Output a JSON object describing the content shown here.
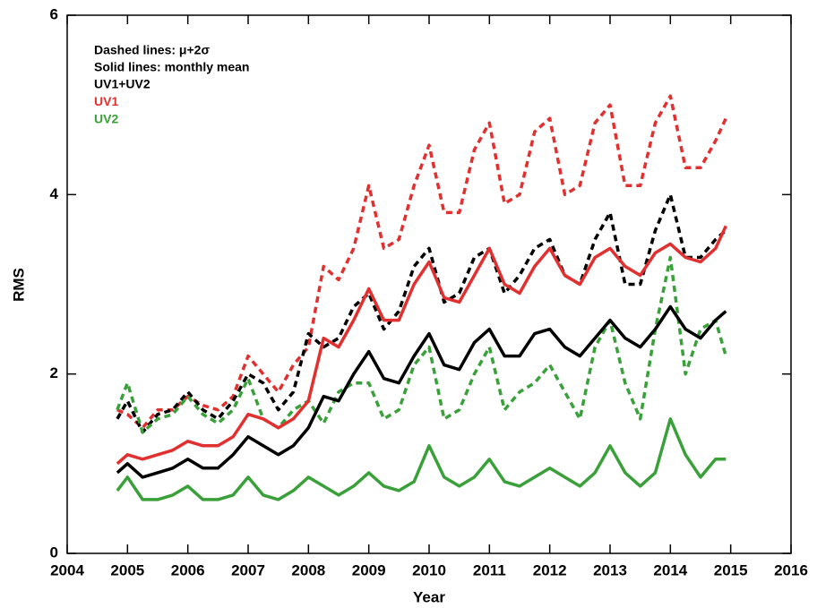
{
  "chart_data": {
    "type": "line",
    "x_label": "Year",
    "y_label": "RMS",
    "annotations": [
      "Dashed lines: μ+2σ",
      "Solid lines: monthly mean"
    ],
    "xlim": [
      2004,
      2016
    ],
    "xticks": [
      2004,
      2005,
      2006,
      2007,
      2008,
      2009,
      2010,
      2011,
      2012,
      2013,
      2014,
      2015,
      2016
    ],
    "ylim": [
      0,
      6
    ],
    "yticks": [
      0,
      2,
      4,
      6
    ],
    "x": [
      2004.83,
      2005,
      2005.25,
      2005.5,
      2005.75,
      2006,
      2006.25,
      2006.5,
      2006.75,
      2007,
      2007.25,
      2007.5,
      2007.75,
      2008,
      2008.25,
      2008.5,
      2008.75,
      2009,
      2009.25,
      2009.5,
      2009.75,
      2010,
      2010.25,
      2010.5,
      2010.75,
      2011,
      2011.25,
      2011.5,
      2011.75,
      2012,
      2012.25,
      2012.5,
      2012.75,
      2013,
      2013.25,
      2013.5,
      2013.75,
      2014,
      2014.25,
      2014.5,
      2014.75,
      2014.92
    ],
    "series": [
      {
        "color": "#e03030",
        "dashed": true,
        "values": [
          1.6,
          1.55,
          1.4,
          1.6,
          1.6,
          1.75,
          1.65,
          1.6,
          1.75,
          2.2,
          2.0,
          1.8,
          2.1,
          2.3,
          3.2,
          3.05,
          3.4,
          4.1,
          3.4,
          3.5,
          4.1,
          4.55,
          3.8,
          3.8,
          4.5,
          4.8,
          3.9,
          4.0,
          4.7,
          4.85,
          4.0,
          4.1,
          4.8,
          5.0,
          4.1,
          4.1,
          4.8,
          5.1,
          4.3,
          4.3,
          4.6,
          4.85
        ]
      },
      {
        "color": "#000000",
        "dashed": true,
        "values": [
          1.5,
          1.7,
          1.35,
          1.55,
          1.6,
          1.8,
          1.6,
          1.5,
          1.7,
          2.0,
          1.9,
          1.6,
          1.8,
          2.45,
          2.3,
          2.4,
          2.75,
          2.9,
          2.5,
          2.7,
          3.2,
          3.4,
          2.8,
          2.9,
          3.3,
          3.4,
          2.9,
          3.1,
          3.4,
          3.5,
          3.1,
          3.0,
          3.5,
          3.8,
          3.0,
          3.0,
          3.6,
          4.0,
          3.3,
          3.3,
          3.5,
          3.6
        ]
      },
      {
        "color": "#3aa03a",
        "dashed": true,
        "values": [
          1.6,
          1.9,
          1.35,
          1.5,
          1.55,
          1.75,
          1.55,
          1.45,
          1.6,
          1.95,
          1.5,
          1.4,
          1.6,
          1.7,
          1.45,
          1.8,
          1.9,
          1.9,
          1.5,
          1.6,
          2.1,
          2.3,
          1.5,
          1.6,
          2.0,
          2.3,
          1.6,
          1.8,
          1.9,
          2.1,
          1.8,
          1.5,
          2.3,
          2.6,
          1.9,
          1.5,
          2.5,
          3.3,
          2.0,
          2.5,
          2.6,
          2.2
        ]
      },
      {
        "name": "UV1+UV2",
        "color": "#000000",
        "dashed": false,
        "values": [
          0.9,
          1.0,
          0.85,
          0.9,
          0.95,
          1.05,
          0.95,
          0.95,
          1.1,
          1.3,
          1.2,
          1.1,
          1.2,
          1.4,
          1.75,
          1.7,
          2.0,
          2.25,
          1.95,
          1.9,
          2.2,
          2.45,
          2.1,
          2.05,
          2.35,
          2.5,
          2.2,
          2.2,
          2.45,
          2.5,
          2.3,
          2.2,
          2.4,
          2.6,
          2.4,
          2.3,
          2.5,
          2.75,
          2.5,
          2.4,
          2.6,
          2.7
        ]
      },
      {
        "name": "UV1",
        "color": "#e03030",
        "dashed": false,
        "values": [
          1.0,
          1.1,
          1.05,
          1.1,
          1.15,
          1.25,
          1.2,
          1.2,
          1.3,
          1.55,
          1.5,
          1.4,
          1.5,
          1.7,
          2.4,
          2.3,
          2.6,
          2.95,
          2.6,
          2.6,
          3.0,
          3.25,
          2.85,
          2.8,
          3.1,
          3.4,
          3.0,
          2.9,
          3.2,
          3.4,
          3.1,
          3.0,
          3.3,
          3.4,
          3.2,
          3.1,
          3.35,
          3.45,
          3.3,
          3.25,
          3.4,
          3.65
        ]
      },
      {
        "name": "UV2",
        "color": "#3aa03a",
        "dashed": false,
        "values": [
          0.7,
          0.85,
          0.6,
          0.6,
          0.65,
          0.75,
          0.6,
          0.6,
          0.65,
          0.85,
          0.65,
          0.6,
          0.7,
          0.85,
          0.75,
          0.65,
          0.75,
          0.9,
          0.75,
          0.7,
          0.8,
          1.2,
          0.85,
          0.75,
          0.85,
          1.05,
          0.8,
          0.75,
          0.85,
          0.95,
          0.85,
          0.75,
          0.9,
          1.2,
          0.9,
          0.75,
          0.9,
          1.5,
          1.1,
          0.85,
          1.05,
          1.05
        ]
      }
    ]
  }
}
